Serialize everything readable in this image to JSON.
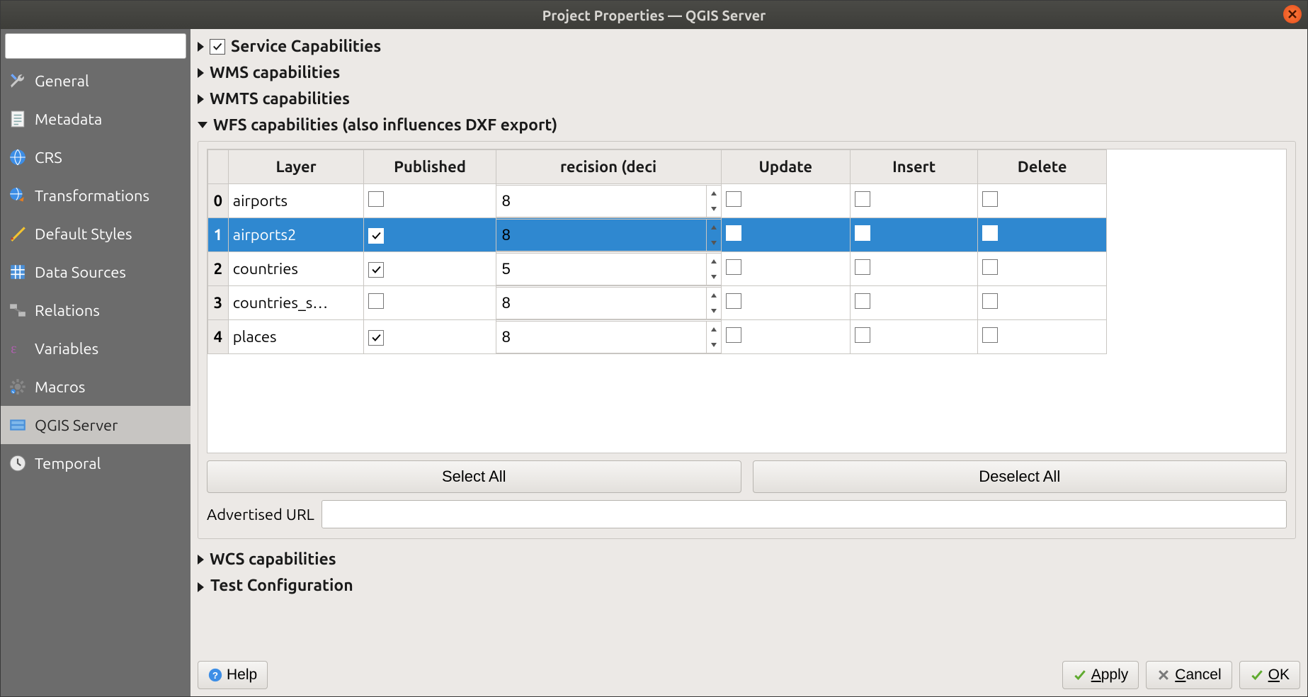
{
  "window": {
    "title": "Project Properties — QGIS Server"
  },
  "sidebar": {
    "search_placeholder": "",
    "items": [
      {
        "label": "General",
        "icon": "wrench",
        "selected": false
      },
      {
        "label": "Metadata",
        "icon": "doc",
        "selected": false
      },
      {
        "label": "CRS",
        "icon": "globe",
        "selected": false
      },
      {
        "label": "Transformations",
        "icon": "globe-arrow",
        "selected": false
      },
      {
        "label": "Default Styles",
        "icon": "brush",
        "selected": false
      },
      {
        "label": "Data Sources",
        "icon": "grid",
        "selected": false
      },
      {
        "label": "Relations",
        "icon": "link",
        "selected": false
      },
      {
        "label": "Variables",
        "icon": "eps",
        "selected": false
      },
      {
        "label": "Macros",
        "icon": "gear",
        "selected": false
      },
      {
        "label": "QGIS Server",
        "icon": "server",
        "selected": true
      },
      {
        "label": "Temporal",
        "icon": "clock",
        "selected": false
      }
    ]
  },
  "sections": {
    "service_caps": "Service Capabilities",
    "wms": "WMS capabilities",
    "wmts": "WMTS capabilities",
    "wfs": "WFS capabilities (also influences DXF export)",
    "wcs": "WCS capabilities",
    "test": "Test Configuration"
  },
  "wfs": {
    "columns": [
      "Layer",
      "Published",
      "recision (deci",
      "Update",
      "Insert",
      "Delete"
    ],
    "rows": [
      {
        "idx": "0",
        "layer": "airports",
        "published": false,
        "precision": "8",
        "update": false,
        "insert": false,
        "delete": false,
        "selected": false
      },
      {
        "idx": "1",
        "layer": "airports2",
        "published": true,
        "precision": "8",
        "update": false,
        "insert": false,
        "delete": false,
        "selected": true
      },
      {
        "idx": "2",
        "layer": "countries",
        "published": true,
        "precision": "5",
        "update": false,
        "insert": false,
        "delete": false,
        "selected": false
      },
      {
        "idx": "3",
        "layer": "countries_s…",
        "published": false,
        "precision": "8",
        "update": false,
        "insert": false,
        "delete": false,
        "selected": false
      },
      {
        "idx": "4",
        "layer": "places",
        "published": true,
        "precision": "8",
        "update": false,
        "insert": false,
        "delete": false,
        "selected": false
      }
    ],
    "select_all": "Select All",
    "deselect_all": "Deselect All",
    "url_label": "Advertised URL",
    "url_value": ""
  },
  "footer": {
    "help": "Help",
    "apply": "Apply",
    "cancel": "Cancel",
    "ok": "OK"
  },
  "colors": {
    "selection": "#2f88d0",
    "panel_bg": "#ece9e6",
    "sidebar_bg": "#6c6c6c",
    "title_bg": "#3d3d39"
  }
}
